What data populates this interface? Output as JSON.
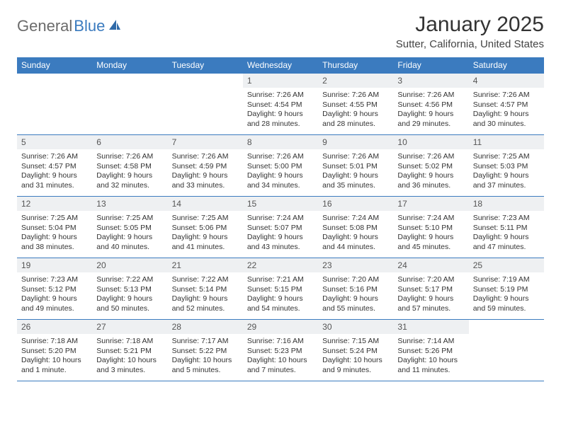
{
  "logo": {
    "textGray": "General",
    "textBlue": "Blue"
  },
  "title": "January 2025",
  "location": "Sutter, California, United States",
  "colors": {
    "headerBar": "#3b7bbf",
    "dayNumBg": "#eef0f2",
    "text": "#333333",
    "logoGray": "#6b6b6b",
    "logoBlue": "#3b7bbf"
  },
  "weekdays": [
    "Sunday",
    "Monday",
    "Tuesday",
    "Wednesday",
    "Thursday",
    "Friday",
    "Saturday"
  ],
  "weeks": [
    [
      {
        "n": "",
        "lines": []
      },
      {
        "n": "",
        "lines": []
      },
      {
        "n": "",
        "lines": []
      },
      {
        "n": "1",
        "lines": [
          "Sunrise: 7:26 AM",
          "Sunset: 4:54 PM",
          "Daylight: 9 hours and 28 minutes."
        ]
      },
      {
        "n": "2",
        "lines": [
          "Sunrise: 7:26 AM",
          "Sunset: 4:55 PM",
          "Daylight: 9 hours and 28 minutes."
        ]
      },
      {
        "n": "3",
        "lines": [
          "Sunrise: 7:26 AM",
          "Sunset: 4:56 PM",
          "Daylight: 9 hours and 29 minutes."
        ]
      },
      {
        "n": "4",
        "lines": [
          "Sunrise: 7:26 AM",
          "Sunset: 4:57 PM",
          "Daylight: 9 hours and 30 minutes."
        ]
      }
    ],
    [
      {
        "n": "5",
        "lines": [
          "Sunrise: 7:26 AM",
          "Sunset: 4:57 PM",
          "Daylight: 9 hours and 31 minutes."
        ]
      },
      {
        "n": "6",
        "lines": [
          "Sunrise: 7:26 AM",
          "Sunset: 4:58 PM",
          "Daylight: 9 hours and 32 minutes."
        ]
      },
      {
        "n": "7",
        "lines": [
          "Sunrise: 7:26 AM",
          "Sunset: 4:59 PM",
          "Daylight: 9 hours and 33 minutes."
        ]
      },
      {
        "n": "8",
        "lines": [
          "Sunrise: 7:26 AM",
          "Sunset: 5:00 PM",
          "Daylight: 9 hours and 34 minutes."
        ]
      },
      {
        "n": "9",
        "lines": [
          "Sunrise: 7:26 AM",
          "Sunset: 5:01 PM",
          "Daylight: 9 hours and 35 minutes."
        ]
      },
      {
        "n": "10",
        "lines": [
          "Sunrise: 7:26 AM",
          "Sunset: 5:02 PM",
          "Daylight: 9 hours and 36 minutes."
        ]
      },
      {
        "n": "11",
        "lines": [
          "Sunrise: 7:25 AM",
          "Sunset: 5:03 PM",
          "Daylight: 9 hours and 37 minutes."
        ]
      }
    ],
    [
      {
        "n": "12",
        "lines": [
          "Sunrise: 7:25 AM",
          "Sunset: 5:04 PM",
          "Daylight: 9 hours and 38 minutes."
        ]
      },
      {
        "n": "13",
        "lines": [
          "Sunrise: 7:25 AM",
          "Sunset: 5:05 PM",
          "Daylight: 9 hours and 40 minutes."
        ]
      },
      {
        "n": "14",
        "lines": [
          "Sunrise: 7:25 AM",
          "Sunset: 5:06 PM",
          "Daylight: 9 hours and 41 minutes."
        ]
      },
      {
        "n": "15",
        "lines": [
          "Sunrise: 7:24 AM",
          "Sunset: 5:07 PM",
          "Daylight: 9 hours and 43 minutes."
        ]
      },
      {
        "n": "16",
        "lines": [
          "Sunrise: 7:24 AM",
          "Sunset: 5:08 PM",
          "Daylight: 9 hours and 44 minutes."
        ]
      },
      {
        "n": "17",
        "lines": [
          "Sunrise: 7:24 AM",
          "Sunset: 5:10 PM",
          "Daylight: 9 hours and 45 minutes."
        ]
      },
      {
        "n": "18",
        "lines": [
          "Sunrise: 7:23 AM",
          "Sunset: 5:11 PM",
          "Daylight: 9 hours and 47 minutes."
        ]
      }
    ],
    [
      {
        "n": "19",
        "lines": [
          "Sunrise: 7:23 AM",
          "Sunset: 5:12 PM",
          "Daylight: 9 hours and 49 minutes."
        ]
      },
      {
        "n": "20",
        "lines": [
          "Sunrise: 7:22 AM",
          "Sunset: 5:13 PM",
          "Daylight: 9 hours and 50 minutes."
        ]
      },
      {
        "n": "21",
        "lines": [
          "Sunrise: 7:22 AM",
          "Sunset: 5:14 PM",
          "Daylight: 9 hours and 52 minutes."
        ]
      },
      {
        "n": "22",
        "lines": [
          "Sunrise: 7:21 AM",
          "Sunset: 5:15 PM",
          "Daylight: 9 hours and 54 minutes."
        ]
      },
      {
        "n": "23",
        "lines": [
          "Sunrise: 7:20 AM",
          "Sunset: 5:16 PM",
          "Daylight: 9 hours and 55 minutes."
        ]
      },
      {
        "n": "24",
        "lines": [
          "Sunrise: 7:20 AM",
          "Sunset: 5:17 PM",
          "Daylight: 9 hours and 57 minutes."
        ]
      },
      {
        "n": "25",
        "lines": [
          "Sunrise: 7:19 AM",
          "Sunset: 5:19 PM",
          "Daylight: 9 hours and 59 minutes."
        ]
      }
    ],
    [
      {
        "n": "26",
        "lines": [
          "Sunrise: 7:18 AM",
          "Sunset: 5:20 PM",
          "Daylight: 10 hours and 1 minute."
        ]
      },
      {
        "n": "27",
        "lines": [
          "Sunrise: 7:18 AM",
          "Sunset: 5:21 PM",
          "Daylight: 10 hours and 3 minutes."
        ]
      },
      {
        "n": "28",
        "lines": [
          "Sunrise: 7:17 AM",
          "Sunset: 5:22 PM",
          "Daylight: 10 hours and 5 minutes."
        ]
      },
      {
        "n": "29",
        "lines": [
          "Sunrise: 7:16 AM",
          "Sunset: 5:23 PM",
          "Daylight: 10 hours and 7 minutes."
        ]
      },
      {
        "n": "30",
        "lines": [
          "Sunrise: 7:15 AM",
          "Sunset: 5:24 PM",
          "Daylight: 10 hours and 9 minutes."
        ]
      },
      {
        "n": "31",
        "lines": [
          "Sunrise: 7:14 AM",
          "Sunset: 5:26 PM",
          "Daylight: 10 hours and 11 minutes."
        ]
      },
      {
        "n": "",
        "lines": []
      }
    ]
  ]
}
